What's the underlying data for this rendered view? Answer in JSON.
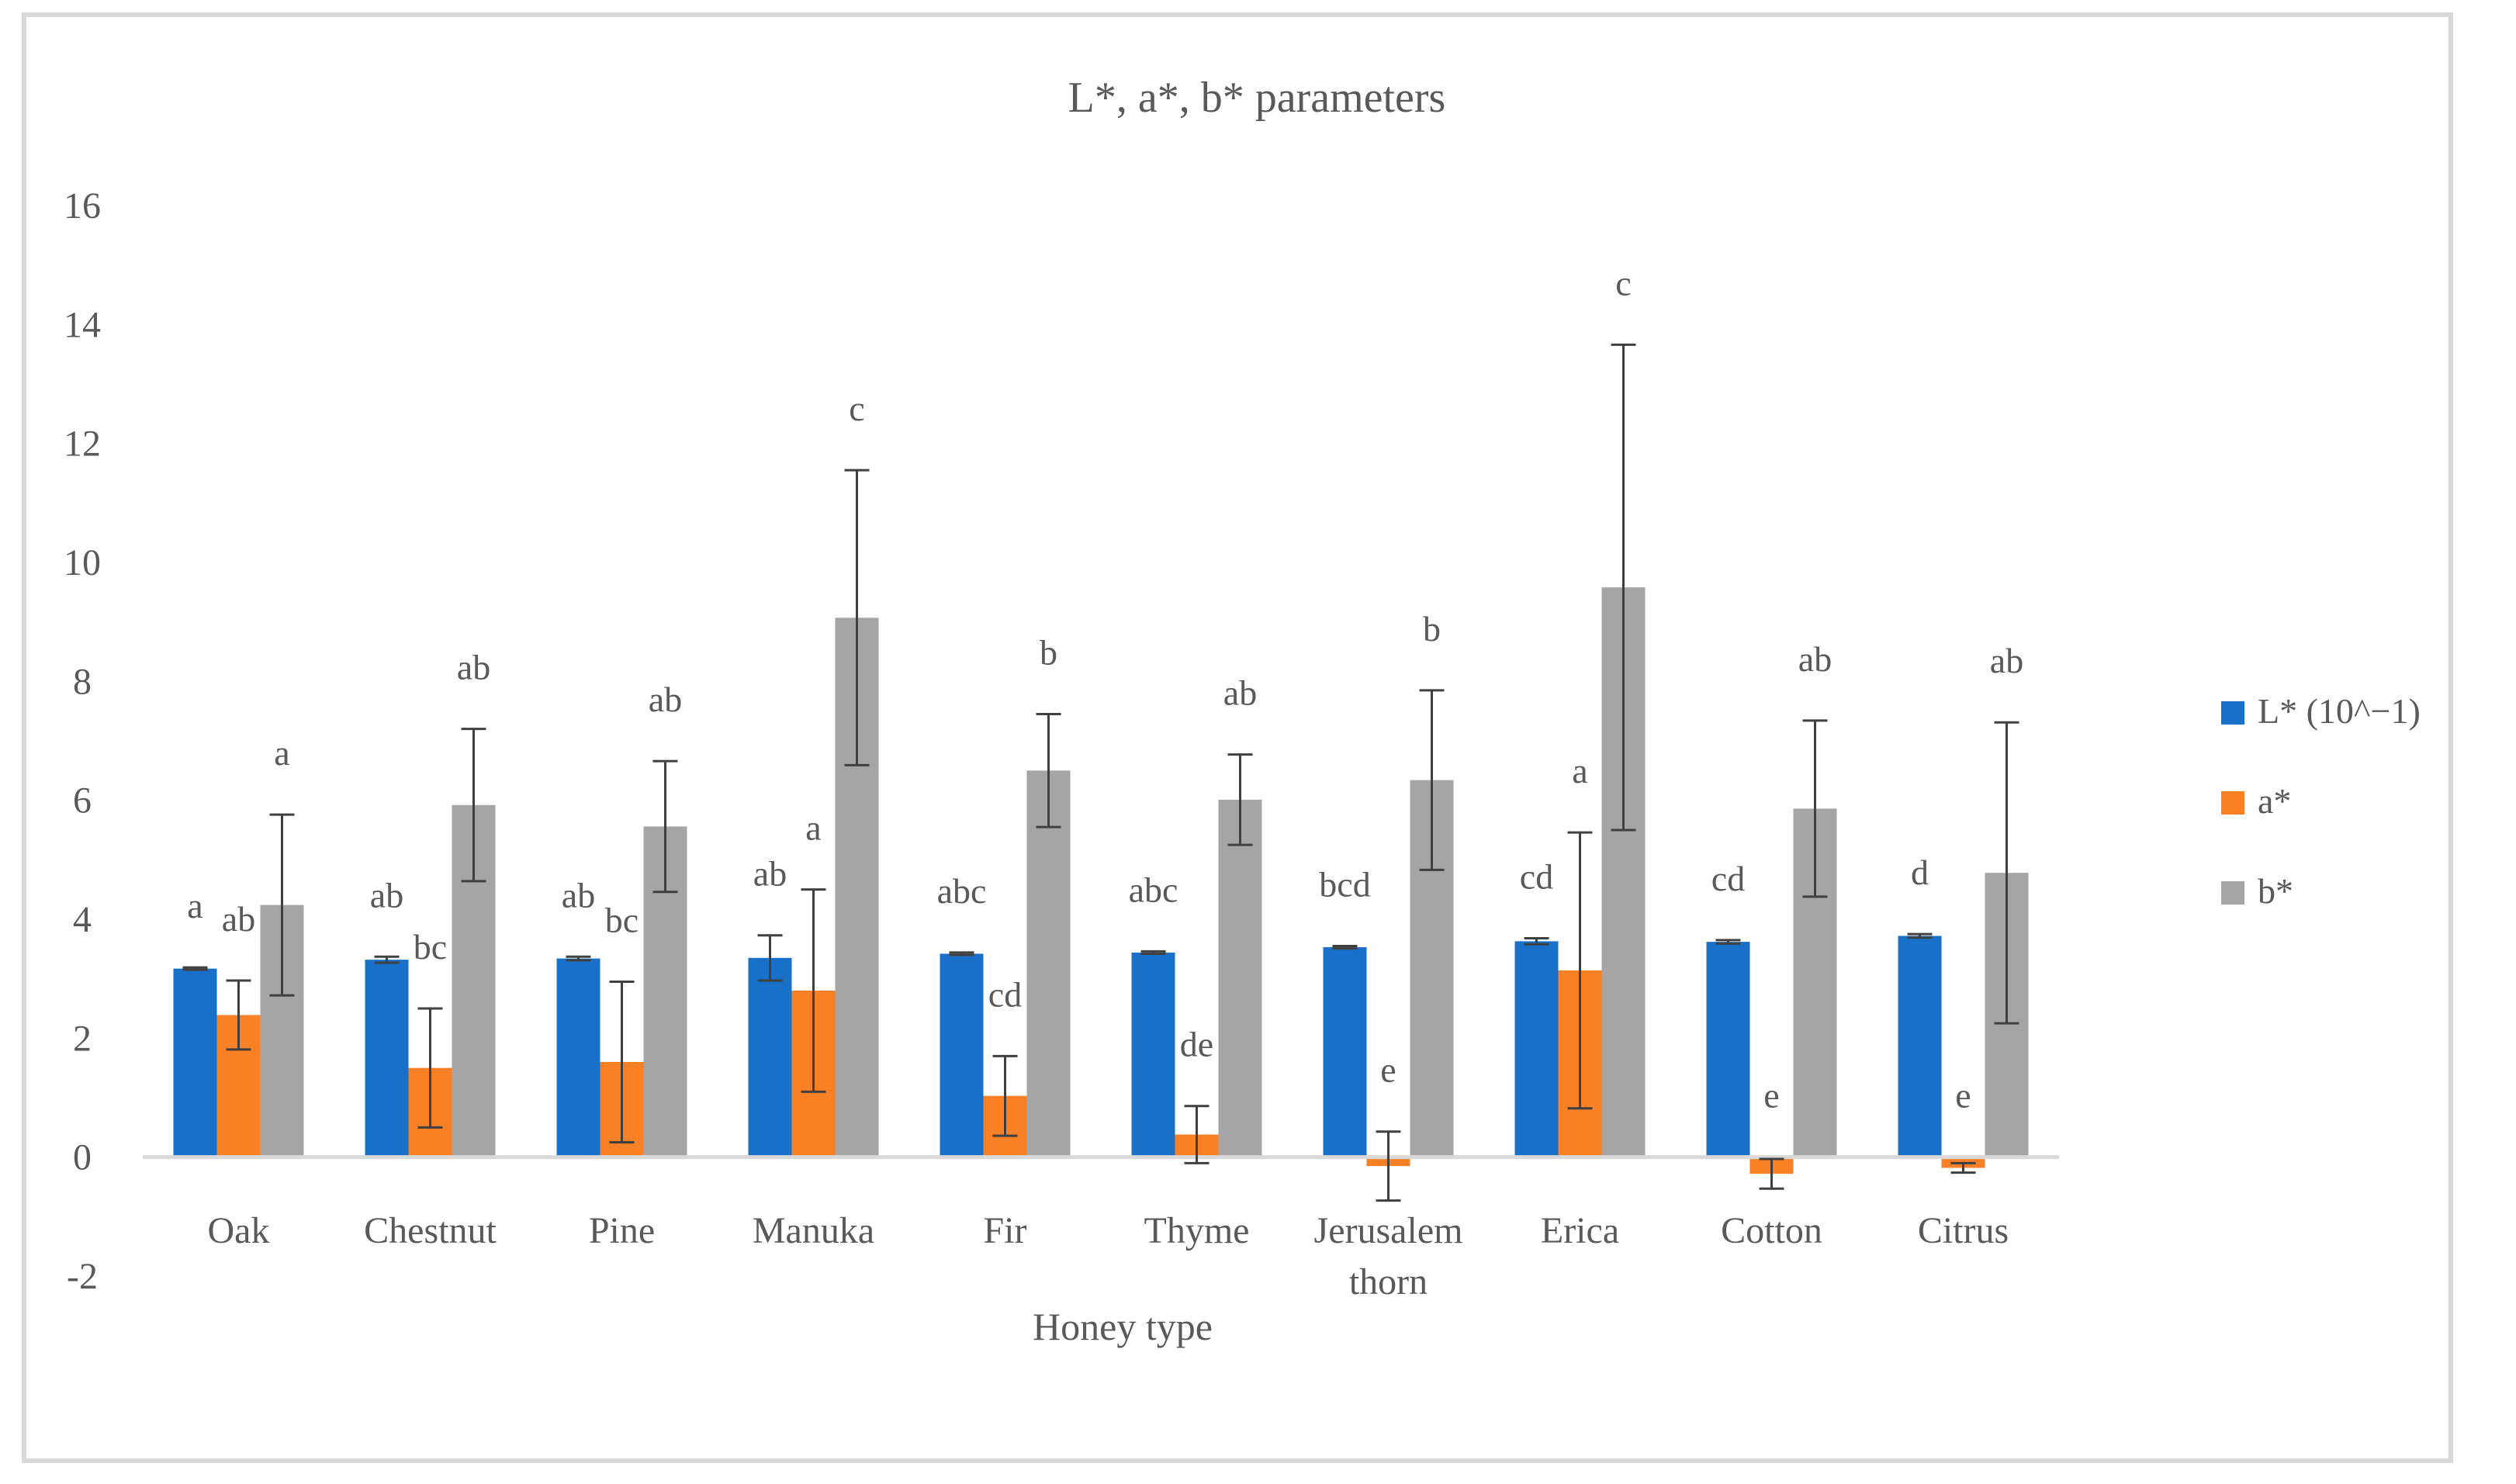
{
  "chart_data": {
    "type": "bar",
    "title": "L*, a*, b* parameters",
    "xlabel": "Honey type",
    "ylabel": "",
    "ylim": [
      -2,
      16
    ],
    "yticks": [
      -2,
      0,
      2,
      4,
      6,
      8,
      10,
      12,
      14,
      16
    ],
    "grid": false,
    "legend_position": "right",
    "categories": [
      [
        "Oak"
      ],
      [
        "Chestnut"
      ],
      [
        "Pine"
      ],
      [
        "Manuka"
      ],
      [
        "Fir"
      ],
      [
        "Thyme"
      ],
      [
        "Jerusalem",
        "thorn"
      ],
      [
        "Erica"
      ],
      [
        "Cotton"
      ],
      [
        "Citrus"
      ]
    ],
    "series": [
      {
        "name": "L* (10^−1)",
        "color": "#1870c8",
        "values": [
          3.17,
          3.32,
          3.34,
          3.35,
          3.42,
          3.44,
          3.53,
          3.63,
          3.62,
          3.72
        ],
        "errors": [
          0.02,
          0.05,
          0.03,
          0.38,
          0.02,
          0.02,
          0.02,
          0.05,
          0.03,
          0.03
        ],
        "labels": [
          "a",
          "ab",
          "ab",
          "ab",
          "abc",
          "abc",
          "bcd",
          "cd",
          "cd",
          "d"
        ]
      },
      {
        "name": "a*",
        "color": "#f98025",
        "values": [
          2.39,
          1.5,
          1.6,
          2.8,
          1.03,
          0.38,
          -0.15,
          3.14,
          -0.28,
          -0.18
        ],
        "errors": [
          0.58,
          1.0,
          1.35,
          1.7,
          0.67,
          0.48,
          0.58,
          2.32,
          0.25,
          0.08
        ],
        "labels": [
          "ab",
          "bc",
          "bc",
          "a",
          "cd",
          "de",
          "e",
          "a",
          "e",
          "e"
        ]
      },
      {
        "name": "b*",
        "color": "#a5a5a5",
        "values": [
          4.24,
          5.92,
          5.56,
          9.07,
          6.5,
          6.01,
          6.34,
          9.58,
          5.86,
          4.78
        ],
        "errors": [
          1.52,
          1.28,
          1.1,
          2.48,
          0.95,
          0.76,
          1.51,
          4.08,
          1.48,
          2.53
        ],
        "labels": [
          "a",
          "ab",
          "ab",
          "c",
          "b",
          "ab",
          "b",
          "c",
          "ab",
          "ab"
        ]
      }
    ]
  }
}
